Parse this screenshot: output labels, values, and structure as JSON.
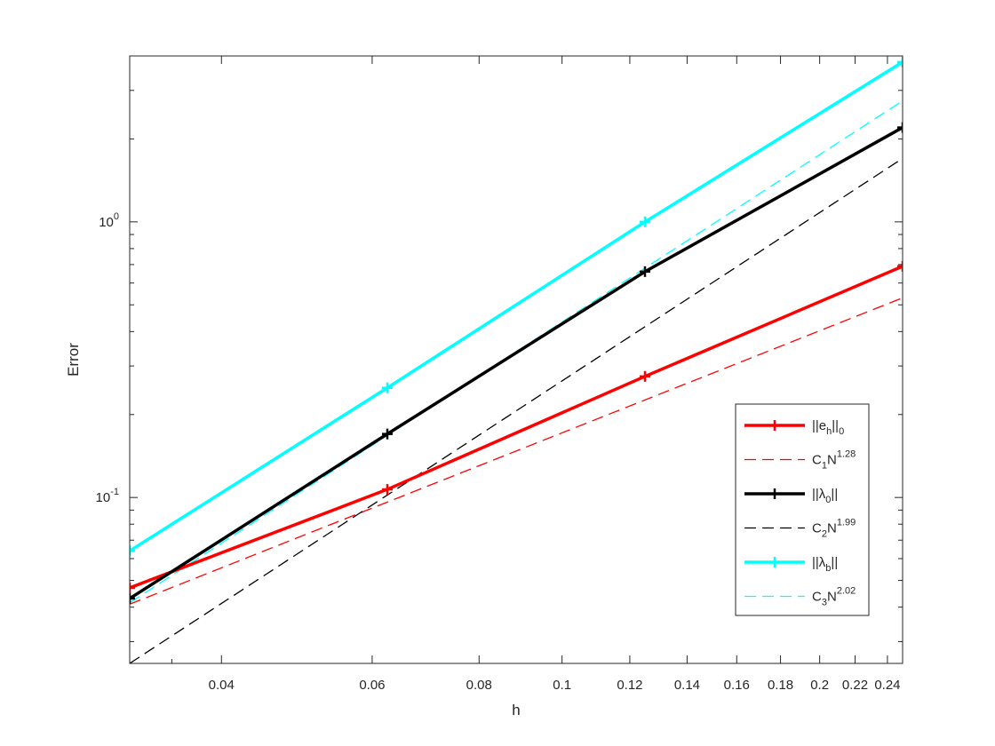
{
  "chart_data": {
    "type": "line",
    "title": "",
    "xlabel": "h",
    "ylabel": "Error",
    "xscale": "log",
    "yscale": "log",
    "xlim": [
      0.03125,
      0.25
    ],
    "ylim": [
      0.025,
      4.0
    ],
    "grid": false,
    "legend_position": "lower-right",
    "x_ticks": [
      {
        "value": 0.04,
        "label": "0.04"
      },
      {
        "value": 0.06,
        "label": "0.06"
      },
      {
        "value": 0.08,
        "label": "0.08"
      },
      {
        "value": 0.1,
        "label": "0.1"
      },
      {
        "value": 0.12,
        "label": "0.12"
      },
      {
        "value": 0.14,
        "label": "0.14"
      },
      {
        "value": 0.16,
        "label": "0.16"
      },
      {
        "value": 0.18,
        "label": "0.18"
      },
      {
        "value": 0.2,
        "label": "0.2"
      },
      {
        "value": 0.22,
        "label": "0.22"
      },
      {
        "value": 0.24,
        "label": "0.24"
      }
    ],
    "y_ticks": [
      {
        "value": 0.1,
        "base": "10",
        "exp": "-1"
      },
      {
        "value": 1,
        "base": "10",
        "exp": "0"
      }
    ],
    "series": [
      {
        "legend": {
          "pre": "||e",
          "sub": "h",
          "mid": "||",
          "sub2": "0",
          "sup": ""
        },
        "color": "#ff0000",
        "style": "solid",
        "marker": "+",
        "x": [
          0.03125,
          0.0625,
          0.125,
          0.25
        ],
        "y": [
          0.047,
          0.107,
          0.275,
          0.69
        ]
      },
      {
        "legend": {
          "pre": "C",
          "sub": "1",
          "mid": "N",
          "sub2": "",
          "sup": "1.28"
        },
        "color": "#ff0000",
        "style": "dashed",
        "marker": "",
        "x": [
          0.03125,
          0.25
        ],
        "y": [
          0.041,
          0.53
        ]
      },
      {
        "legend": {
          "pre": "||λ",
          "sub": "0",
          "mid": "||",
          "sub2": "",
          "sup": ""
        },
        "color": "#000000",
        "style": "solid",
        "marker": "+",
        "x": [
          0.03125,
          0.0625,
          0.125,
          0.25
        ],
        "y": [
          0.043,
          0.17,
          0.66,
          2.2
        ]
      },
      {
        "legend": {
          "pre": "C",
          "sub": "2",
          "mid": "N",
          "sub2": "",
          "sup": "1.99"
        },
        "color": "#000000",
        "style": "dashed",
        "marker": "",
        "x": [
          0.03125,
          0.25
        ],
        "y": [
          0.025,
          1.7
        ]
      },
      {
        "legend": {
          "pre": "||λ",
          "sub": "b",
          "mid": "||",
          "sub2": "",
          "sup": ""
        },
        "color": "#00ffff",
        "style": "solid",
        "marker": "+",
        "x": [
          0.03125,
          0.0625,
          0.125,
          0.25
        ],
        "y": [
          0.064,
          0.25,
          1.0,
          3.8
        ]
      },
      {
        "legend": {
          "pre": "C",
          "sub": "3",
          "mid": "N",
          "sub2": "",
          "sup": "2.02"
        },
        "color": "#00ffff",
        "style": "dashed",
        "marker": "",
        "x": [
          0.03125,
          0.25
        ],
        "y": [
          0.0415,
          2.75
        ]
      }
    ]
  }
}
